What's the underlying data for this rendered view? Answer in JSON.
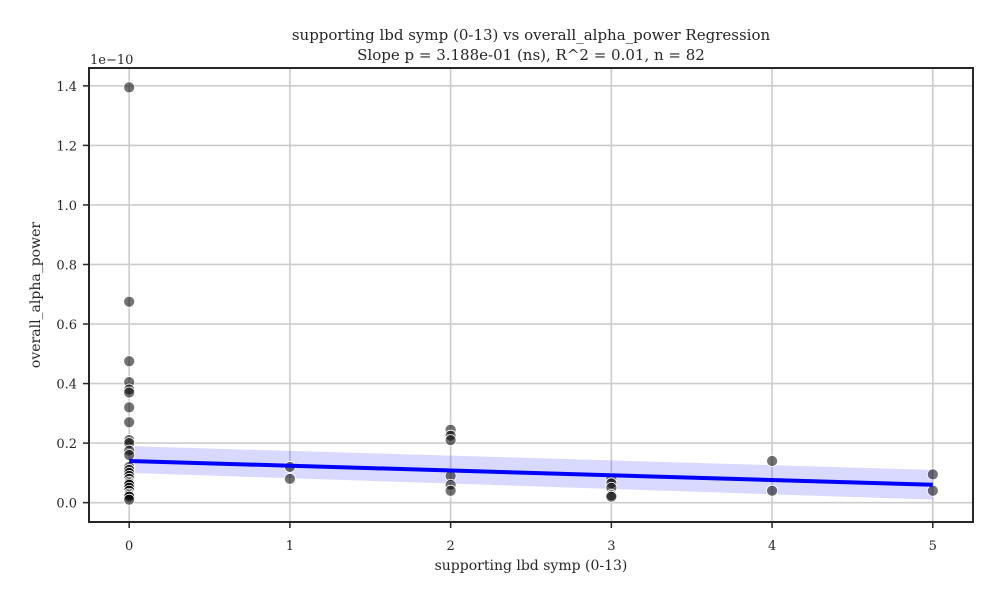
{
  "chart_data": {
    "type": "scatter",
    "title": "supporting lbd symp (0-13) vs overall_alpha_power Regression",
    "subtitle": "Slope p = 3.188e-01 (ns), R^2 = 0.01, n = 82",
    "xlabel": "supporting lbd symp (0-13)",
    "ylabel": "overall_alpha_power",
    "y_scale_label": "1e−10",
    "xlim": [
      -0.25,
      5.25
    ],
    "ylim": [
      -0.065,
      1.46
    ],
    "x_ticks": [
      0,
      1,
      2,
      3,
      4,
      5
    ],
    "x_tick_labels": [
      "0",
      "1",
      "2",
      "3",
      "4",
      "5"
    ],
    "y_ticks": [
      0.0,
      0.2,
      0.4,
      0.6,
      0.8,
      1.0,
      1.2,
      1.4
    ],
    "y_tick_labels": [
      "0.0",
      "0.2",
      "0.4",
      "0.6",
      "0.8",
      "1.0",
      "1.2",
      "1.4"
    ],
    "grid": true,
    "points": [
      {
        "x": 0,
        "y": 1.395
      },
      {
        "x": 0,
        "y": 0.675
      },
      {
        "x": 0,
        "y": 0.475
      },
      {
        "x": 0,
        "y": 0.405
      },
      {
        "x": 0,
        "y": 0.38
      },
      {
        "x": 0,
        "y": 0.37
      },
      {
        "x": 0,
        "y": 0.32
      },
      {
        "x": 0,
        "y": 0.27
      },
      {
        "x": 0,
        "y": 0.21
      },
      {
        "x": 0,
        "y": 0.2
      },
      {
        "x": 0,
        "y": 0.175
      },
      {
        "x": 0,
        "y": 0.16
      },
      {
        "x": 0,
        "y": 0.12
      },
      {
        "x": 0,
        "y": 0.11
      },
      {
        "x": 0,
        "y": 0.1
      },
      {
        "x": 0,
        "y": 0.09
      },
      {
        "x": 0,
        "y": 0.08
      },
      {
        "x": 0,
        "y": 0.07
      },
      {
        "x": 0,
        "y": 0.065
      },
      {
        "x": 0,
        "y": 0.06
      },
      {
        "x": 0,
        "y": 0.05
      },
      {
        "x": 0,
        "y": 0.04
      },
      {
        "x": 0,
        "y": 0.03
      },
      {
        "x": 0,
        "y": 0.025
      },
      {
        "x": 0,
        "y": 0.02
      },
      {
        "x": 0,
        "y": 0.01
      },
      {
        "x": 1,
        "y": 0.12
      },
      {
        "x": 1,
        "y": 0.08
      },
      {
        "x": 2,
        "y": 0.245
      },
      {
        "x": 2,
        "y": 0.225
      },
      {
        "x": 2,
        "y": 0.21
      },
      {
        "x": 2,
        "y": 0.09
      },
      {
        "x": 2,
        "y": 0.06
      },
      {
        "x": 2,
        "y": 0.04
      },
      {
        "x": 3,
        "y": 0.08
      },
      {
        "x": 3,
        "y": 0.065
      },
      {
        "x": 3,
        "y": 0.05
      },
      {
        "x": 3,
        "y": 0.025
      },
      {
        "x": 3,
        "y": 0.02
      },
      {
        "x": 4,
        "y": 0.14
      },
      {
        "x": 4,
        "y": 0.04
      },
      {
        "x": 5,
        "y": 0.095
      },
      {
        "x": 5,
        "y": 0.04
      }
    ],
    "regression": {
      "x_range": [
        0,
        5
      ],
      "y_start": 0.14,
      "y_end": 0.06,
      "ci_start": [
        0.1,
        0.19
      ],
      "ci_end": [
        0.01,
        0.11
      ]
    },
    "colors": {
      "points": "#000000",
      "fit_line": "#0000ff",
      "ci_band": "#0000ff"
    }
  }
}
